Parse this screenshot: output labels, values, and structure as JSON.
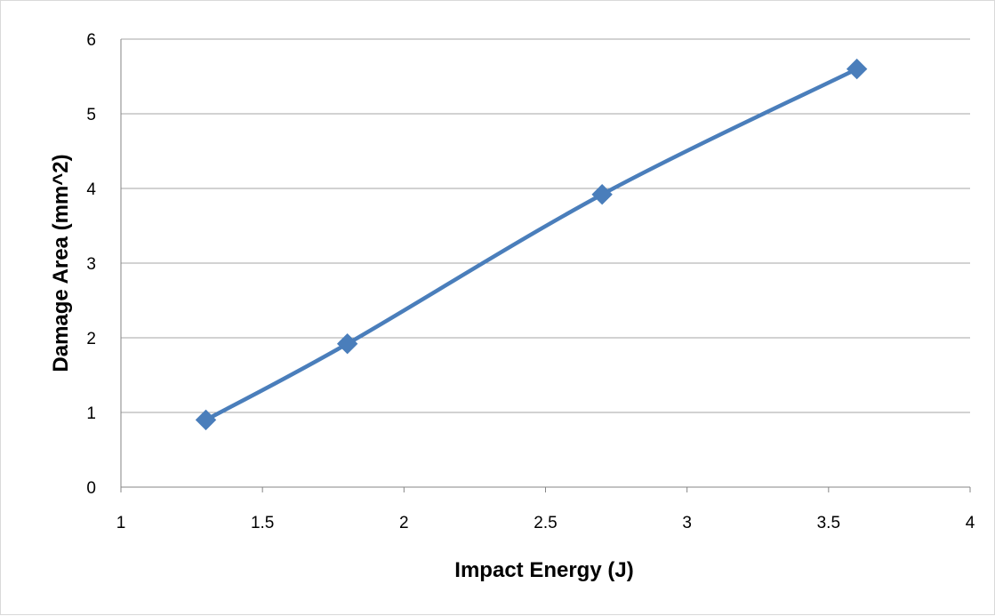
{
  "chart_data": {
    "type": "scatter",
    "title": "",
    "xlabel": "Impact Energy (J)",
    "ylabel": "Damage Area (mm^2)",
    "xlim": [
      1,
      4
    ],
    "ylim": [
      0,
      6
    ],
    "x_ticks": [
      "1",
      "1.5",
      "2",
      "2.5",
      "3",
      "3.5",
      "4"
    ],
    "y_ticks": [
      "0",
      "1",
      "2",
      "3",
      "4",
      "5",
      "6"
    ],
    "grid": true,
    "line_style": "smoothed line with diamond markers",
    "series": [
      {
        "color": "#4a7ebb",
        "marker": "diamond",
        "x": [
          1.3,
          1.8,
          2.7,
          3.6
        ],
        "y": [
          0.9,
          1.92,
          3.92,
          5.6
        ]
      }
    ]
  }
}
